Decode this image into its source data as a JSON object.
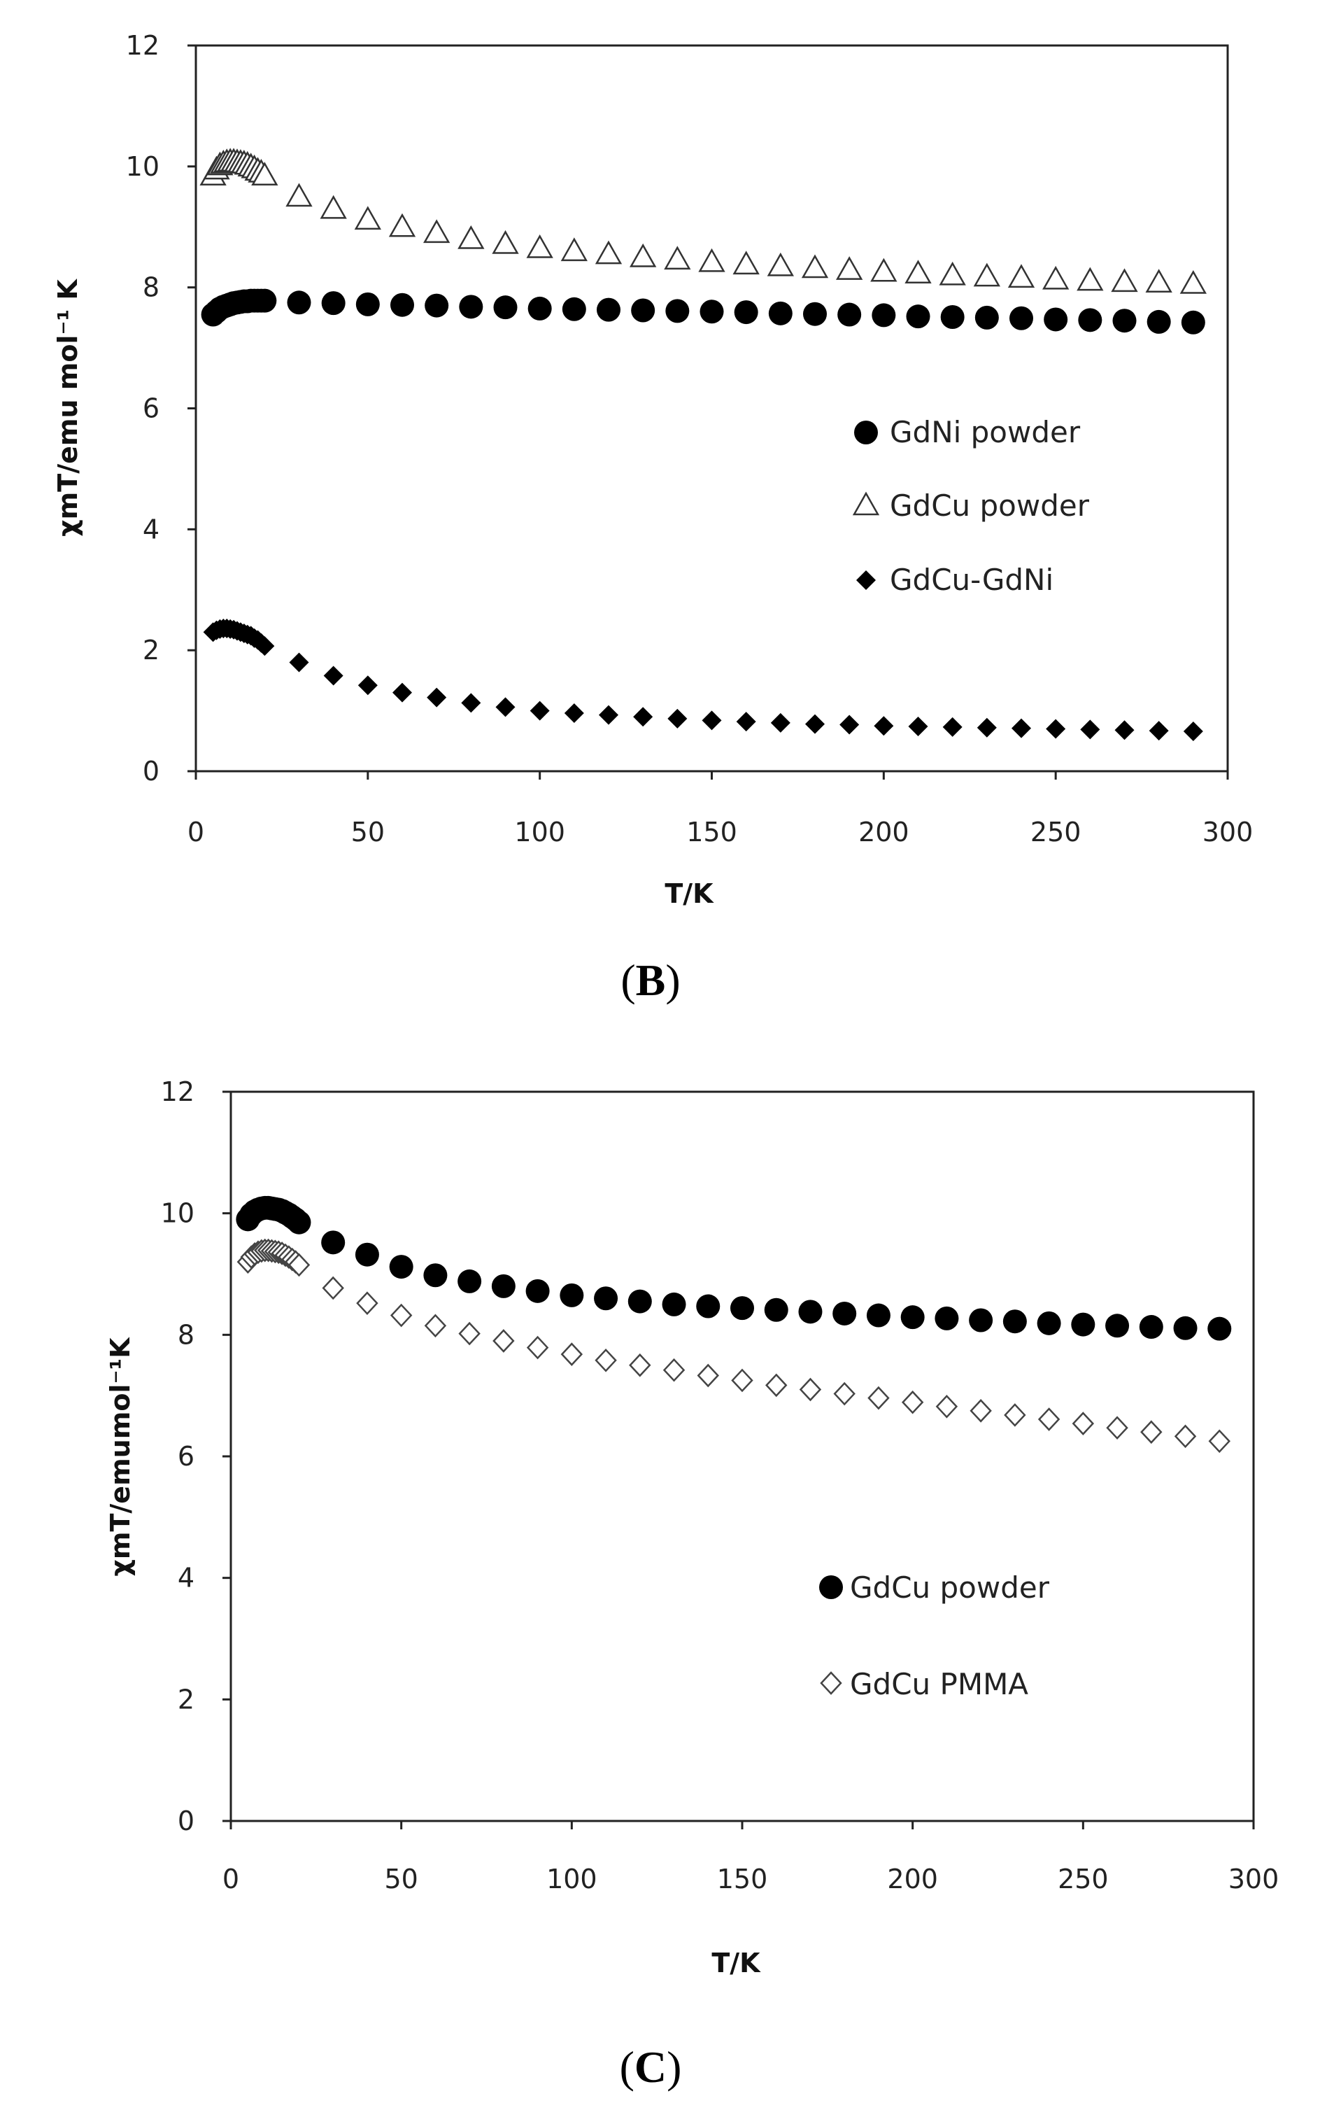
{
  "chart_data": [
    {
      "type": "scatter",
      "panel_label": "B",
      "xlabel": "T/K",
      "ylabel": "χmT/emu mol⁻¹ K",
      "xlim": [
        0,
        300
      ],
      "ylim": [
        0,
        12
      ],
      "xticks": [
        0,
        50,
        100,
        150,
        200,
        250,
        300
      ],
      "yticks": [
        0,
        2,
        4,
        6,
        8,
        10,
        12
      ],
      "legend_position": "right-middle",
      "series": [
        {
          "name": "GdNi powder",
          "marker": "filled-circle",
          "x": [
            5,
            6,
            7,
            8,
            9,
            10,
            11,
            12,
            13,
            14,
            15,
            16,
            17,
            18,
            19,
            20,
            30,
            40,
            50,
            60,
            70,
            80,
            90,
            100,
            110,
            120,
            130,
            140,
            150,
            160,
            170,
            180,
            190,
            200,
            210,
            220,
            230,
            240,
            250,
            260,
            270,
            280,
            290
          ],
          "y": [
            7.55,
            7.6,
            7.65,
            7.68,
            7.7,
            7.72,
            7.74,
            7.75,
            7.76,
            7.77,
            7.77,
            7.78,
            7.78,
            7.78,
            7.78,
            7.78,
            7.75,
            7.74,
            7.72,
            7.71,
            7.7,
            7.68,
            7.67,
            7.65,
            7.64,
            7.63,
            7.62,
            7.61,
            7.6,
            7.59,
            7.57,
            7.56,
            7.55,
            7.54,
            7.52,
            7.51,
            7.5,
            7.49,
            7.47,
            7.46,
            7.45,
            7.43,
            7.42
          ]
        },
        {
          "name": "GdCu powder",
          "marker": "open-triangle",
          "x": [
            5,
            6,
            7,
            8,
            9,
            10,
            11,
            12,
            13,
            14,
            15,
            16,
            17,
            18,
            19,
            20,
            30,
            40,
            50,
            60,
            70,
            80,
            90,
            100,
            110,
            120,
            130,
            140,
            150,
            160,
            170,
            180,
            190,
            200,
            210,
            220,
            230,
            240,
            250,
            260,
            270,
            280,
            290
          ],
          "y": [
            9.85,
            9.95,
            10.02,
            10.05,
            10.07,
            10.08,
            10.08,
            10.07,
            10.06,
            10.05,
            10.03,
            10.0,
            9.97,
            9.93,
            9.9,
            9.85,
            9.5,
            9.3,
            9.12,
            9.0,
            8.9,
            8.8,
            8.72,
            8.65,
            8.6,
            8.55,
            8.5,
            8.46,
            8.42,
            8.38,
            8.35,
            8.32,
            8.29,
            8.26,
            8.23,
            8.2,
            8.18,
            8.16,
            8.13,
            8.11,
            8.09,
            8.08,
            8.06
          ]
        },
        {
          "name": "GdCu-GdNi",
          "marker": "filled-diamond",
          "x": [
            5,
            6,
            7,
            8,
            9,
            10,
            11,
            12,
            13,
            14,
            15,
            16,
            17,
            18,
            19,
            20,
            30,
            40,
            50,
            60,
            70,
            80,
            90,
            100,
            110,
            120,
            130,
            140,
            150,
            160,
            170,
            180,
            190,
            200,
            210,
            220,
            230,
            240,
            250,
            260,
            270,
            280,
            290
          ],
          "y": [
            2.3,
            2.33,
            2.35,
            2.36,
            2.36,
            2.35,
            2.34,
            2.32,
            2.3,
            2.28,
            2.26,
            2.24,
            2.2,
            2.17,
            2.12,
            2.07,
            1.8,
            1.58,
            1.42,
            1.3,
            1.22,
            1.13,
            1.06,
            1.0,
            0.96,
            0.93,
            0.9,
            0.87,
            0.84,
            0.82,
            0.8,
            0.78,
            0.77,
            0.75,
            0.74,
            0.73,
            0.72,
            0.71,
            0.7,
            0.69,
            0.68,
            0.67,
            0.66
          ]
        }
      ]
    },
    {
      "type": "scatter",
      "panel_label": "C",
      "xlabel": "T/K",
      "ylabel": "χmT/emumol⁻¹K",
      "xlim": [
        0,
        300
      ],
      "ylim": [
        0,
        12
      ],
      "xticks": [
        0,
        50,
        100,
        150,
        200,
        250,
        300
      ],
      "yticks": [
        0,
        2,
        4,
        6,
        8,
        10,
        12
      ],
      "legend_position": "right-middle",
      "series": [
        {
          "name": "GdCu powder",
          "marker": "filled-circle",
          "x": [
            5,
            6,
            7,
            8,
            9,
            10,
            11,
            12,
            13,
            14,
            15,
            16,
            17,
            18,
            19,
            20,
            30,
            40,
            50,
            60,
            70,
            80,
            90,
            100,
            110,
            120,
            130,
            140,
            150,
            160,
            170,
            180,
            190,
            200,
            210,
            220,
            230,
            240,
            250,
            260,
            270,
            280,
            290
          ],
          "y": [
            9.9,
            9.98,
            10.03,
            10.06,
            10.08,
            10.09,
            10.09,
            10.08,
            10.07,
            10.06,
            10.04,
            10.01,
            9.98,
            9.94,
            9.9,
            9.85,
            9.52,
            9.32,
            9.12,
            8.98,
            8.88,
            8.8,
            8.72,
            8.65,
            8.6,
            8.55,
            8.5,
            8.47,
            8.44,
            8.41,
            8.38,
            8.35,
            8.32,
            8.29,
            8.27,
            8.24,
            8.22,
            8.19,
            8.17,
            8.15,
            8.13,
            8.11,
            8.1
          ]
        },
        {
          "name": "GdCu PMMA",
          "marker": "open-diamond",
          "x": [
            5,
            6,
            7,
            8,
            9,
            10,
            11,
            12,
            13,
            14,
            15,
            16,
            17,
            18,
            19,
            20,
            30,
            40,
            50,
            60,
            70,
            80,
            90,
            100,
            110,
            120,
            130,
            140,
            150,
            160,
            170,
            180,
            190,
            200,
            210,
            220,
            230,
            240,
            250,
            260,
            270,
            280,
            290
          ],
          "y": [
            9.2,
            9.28,
            9.33,
            9.36,
            9.38,
            9.39,
            9.39,
            9.38,
            9.37,
            9.36,
            9.34,
            9.31,
            9.28,
            9.24,
            9.2,
            9.15,
            8.77,
            8.52,
            8.32,
            8.15,
            8.02,
            7.9,
            7.79,
            7.68,
            7.58,
            7.5,
            7.42,
            7.33,
            7.25,
            7.17,
            7.1,
            7.03,
            6.96,
            6.89,
            6.82,
            6.75,
            6.68,
            6.61,
            6.54,
            6.47,
            6.4,
            6.33,
            6.25
          ]
        }
      ]
    }
  ]
}
